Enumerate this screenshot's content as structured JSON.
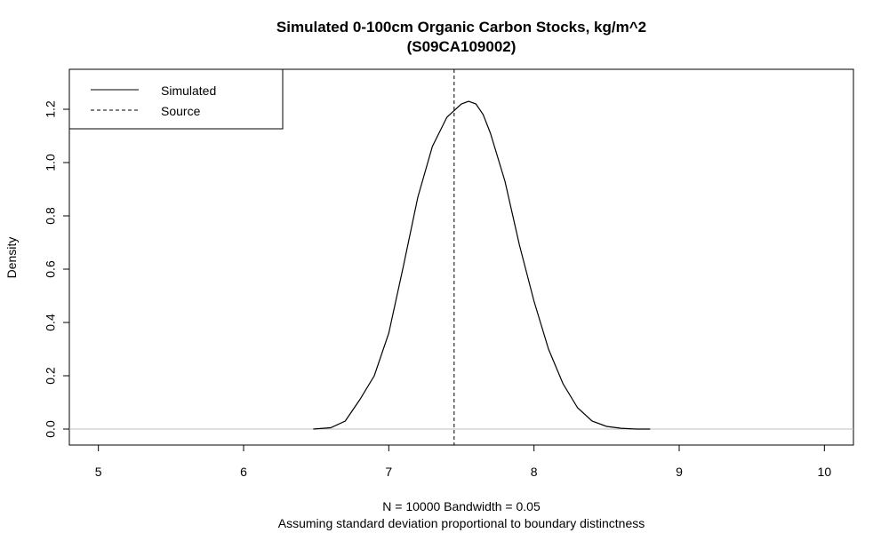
{
  "chart_data": {
    "type": "line",
    "title": "Simulated 0-100cm Organic Carbon Stocks, kg/m^2",
    "subtitle": "(S09CA109002)",
    "xlabel": "",
    "ylabel": "Density",
    "xlim": [
      4.8,
      10.2
    ],
    "ylim": [
      -0.06,
      1.35
    ],
    "xticks": [
      5,
      6,
      7,
      8,
      9,
      10
    ],
    "yticks": [
      "0.0",
      "0.2",
      "0.4",
      "0.6",
      "0.8",
      "1.0",
      "1.2"
    ],
    "footer_line1": "N = 10000   Bandwidth = 0.05",
    "footer_line2": "Assuming standard deviation proportional to boundary distinctness",
    "grid": false,
    "legend_position": "top-left",
    "legend": [
      {
        "label": "Simulated",
        "style": "solid"
      },
      {
        "label": "Source",
        "style": "dashed"
      }
    ],
    "series": [
      {
        "name": "Simulated",
        "x": [
          6.48,
          6.6,
          6.7,
          6.8,
          6.9,
          7.0,
          7.1,
          7.2,
          7.3,
          7.4,
          7.5,
          7.55,
          7.6,
          7.65,
          7.7,
          7.8,
          7.9,
          8.0,
          8.1,
          8.2,
          8.3,
          8.4,
          8.5,
          8.6,
          8.7,
          8.8
        ],
        "y": [
          0.0,
          0.005,
          0.03,
          0.11,
          0.2,
          0.36,
          0.61,
          0.87,
          1.06,
          1.17,
          1.22,
          1.23,
          1.22,
          1.18,
          1.11,
          0.93,
          0.69,
          0.48,
          0.3,
          0.17,
          0.08,
          0.03,
          0.01,
          0.003,
          0.0,
          0.0
        ]
      }
    ],
    "source_value": 7.45
  }
}
